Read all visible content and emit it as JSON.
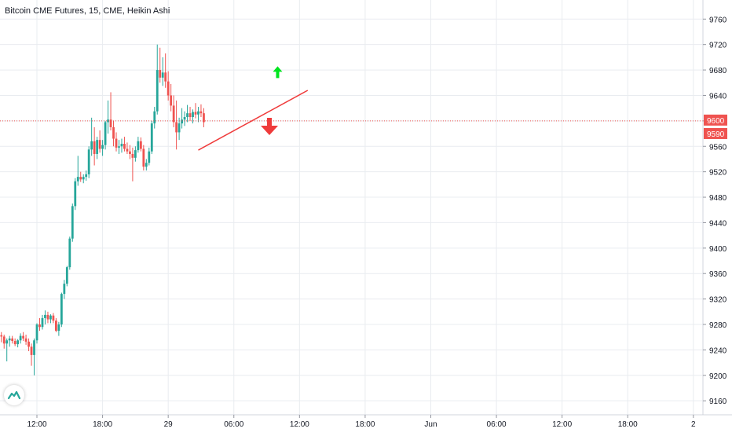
{
  "chart_title": "Bitcoin CME Futures, 15, CME, Heikin Ashi",
  "colors": {
    "up": "#26a69a",
    "down": "#ef5350",
    "grid": "#e9ecf0",
    "axis_text": "#131722",
    "line_tag": "#ef5350",
    "arrow_up": "#00e51f",
    "arrow_down": "#ef3b3b",
    "trendline": "#ef3b3b"
  },
  "logo_icon": "tradingview-cloud-icon",
  "chart_data": {
    "type": "candlestick",
    "y_ticks": [
      9160,
      9200,
      9240,
      9280,
      9320,
      9360,
      9400,
      9440,
      9480,
      9520,
      9560,
      9600,
      9640,
      9680,
      9720,
      9760
    ],
    "y_tick_labels": [
      "9160",
      "9200",
      "9240",
      "9280",
      "9320",
      "9360",
      "9400",
      "9440",
      "9480",
      "9520",
      "9560",
      "9600",
      "9640",
      "9680",
      "9720",
      "9760"
    ],
    "ylim": [
      9138,
      9790
    ],
    "x_ticks": [
      "12:00",
      "18:00",
      "29",
      "06:00",
      "12:00",
      "18:00",
      "Jun",
      "06:00",
      "12:00",
      "18:00",
      "2"
    ],
    "x_tick_bar_index": [
      13,
      37,
      61,
      85,
      109,
      133,
      157,
      181,
      205,
      229,
      253
    ],
    "total_bar_slots": 257,
    "price_tags": [
      {
        "label": "9600",
        "value": 9600,
        "style": "filled"
      },
      {
        "label": "9590",
        "value": 9590,
        "style": "filled"
      }
    ],
    "price_line": 9600,
    "trendline": {
      "from": {
        "bar": 72,
        "price": 9554
      },
      "to": {
        "bar": 112,
        "price": 9648
      }
    },
    "annotations": [
      {
        "type": "arrow-up",
        "bar": 101,
        "price": 9676
      },
      {
        "type": "arrow-down",
        "bar": 98,
        "price": 9590
      }
    ],
    "candles": [
      {
        "o": 9263,
        "h": 9268,
        "l": 9252,
        "c": 9261
      },
      {
        "o": 9261,
        "h": 9264,
        "l": 9242,
        "c": 9250
      },
      {
        "o": 9250,
        "h": 9258,
        "l": 9222,
        "c": 9255
      },
      {
        "o": 9255,
        "h": 9262,
        "l": 9245,
        "c": 9258
      },
      {
        "o": 9258,
        "h": 9262,
        "l": 9250,
        "c": 9254
      },
      {
        "o": 9254,
        "h": 9258,
        "l": 9246,
        "c": 9249
      },
      {
        "o": 9249,
        "h": 9257,
        "l": 9244,
        "c": 9255
      },
      {
        "o": 9255,
        "h": 9266,
        "l": 9250,
        "c": 9262
      },
      {
        "o": 9262,
        "h": 9268,
        "l": 9254,
        "c": 9258
      },
      {
        "o": 9258,
        "h": 9264,
        "l": 9248,
        "c": 9253
      },
      {
        "o": 9253,
        "h": 9258,
        "l": 9238,
        "c": 9245
      },
      {
        "o": 9245,
        "h": 9250,
        "l": 9215,
        "c": 9232
      },
      {
        "o": 9232,
        "h": 9258,
        "l": 9200,
        "c": 9255
      },
      {
        "o": 9255,
        "h": 9282,
        "l": 9250,
        "c": 9280
      },
      {
        "o": 9280,
        "h": 9290,
        "l": 9270,
        "c": 9276
      },
      {
        "o": 9276,
        "h": 9295,
        "l": 9272,
        "c": 9290
      },
      {
        "o": 9290,
        "h": 9302,
        "l": 9280,
        "c": 9295
      },
      {
        "o": 9295,
        "h": 9300,
        "l": 9282,
        "c": 9288
      },
      {
        "o": 9288,
        "h": 9296,
        "l": 9282,
        "c": 9294
      },
      {
        "o": 9294,
        "h": 9298,
        "l": 9282,
        "c": 9286
      },
      {
        "o": 9286,
        "h": 9290,
        "l": 9268,
        "c": 9270
      },
      {
        "o": 9270,
        "h": 9284,
        "l": 9262,
        "c": 9280
      },
      {
        "o": 9280,
        "h": 9330,
        "l": 9276,
        "c": 9328
      },
      {
        "o": 9328,
        "h": 9350,
        "l": 9320,
        "c": 9344
      },
      {
        "o": 9344,
        "h": 9372,
        "l": 9340,
        "c": 9370
      },
      {
        "o": 9370,
        "h": 9418,
        "l": 9366,
        "c": 9415
      },
      {
        "o": 9415,
        "h": 9470,
        "l": 9410,
        "c": 9466
      },
      {
        "o": 9466,
        "h": 9510,
        "l": 9460,
        "c": 9505
      },
      {
        "o": 9505,
        "h": 9545,
        "l": 9498,
        "c": 9512
      },
      {
        "o": 9512,
        "h": 9520,
        "l": 9504,
        "c": 9508
      },
      {
        "o": 9508,
        "h": 9516,
        "l": 9502,
        "c": 9512
      },
      {
        "o": 9512,
        "h": 9522,
        "l": 9506,
        "c": 9516
      },
      {
        "o": 9516,
        "h": 9560,
        "l": 9510,
        "c": 9555
      },
      {
        "o": 9555,
        "h": 9605,
        "l": 9545,
        "c": 9568
      },
      {
        "o": 9568,
        "h": 9590,
        "l": 9530,
        "c": 9548
      },
      {
        "o": 9548,
        "h": 9575,
        "l": 9540,
        "c": 9570
      },
      {
        "o": 9570,
        "h": 9585,
        "l": 9550,
        "c": 9556
      },
      {
        "o": 9556,
        "h": 9570,
        "l": 9545,
        "c": 9562
      },
      {
        "o": 9562,
        "h": 9600,
        "l": 9555,
        "c": 9598
      },
      {
        "o": 9598,
        "h": 9632,
        "l": 9580,
        "c": 9602
      },
      {
        "o": 9602,
        "h": 9645,
        "l": 9585,
        "c": 9590
      },
      {
        "o": 9590,
        "h": 9600,
        "l": 9560,
        "c": 9572
      },
      {
        "o": 9572,
        "h": 9582,
        "l": 9552,
        "c": 9558
      },
      {
        "o": 9558,
        "h": 9570,
        "l": 9548,
        "c": 9560
      },
      {
        "o": 9560,
        "h": 9572,
        "l": 9550,
        "c": 9564
      },
      {
        "o": 9564,
        "h": 9575,
        "l": 9552,
        "c": 9556
      },
      {
        "o": 9556,
        "h": 9566,
        "l": 9548,
        "c": 9552
      },
      {
        "o": 9552,
        "h": 9562,
        "l": 9540,
        "c": 9548
      },
      {
        "o": 9548,
        "h": 9558,
        "l": 9505,
        "c": 9542
      },
      {
        "o": 9542,
        "h": 9560,
        "l": 9536,
        "c": 9554
      },
      {
        "o": 9554,
        "h": 9575,
        "l": 9550,
        "c": 9568
      },
      {
        "o": 9568,
        "h": 9574,
        "l": 9552,
        "c": 9556
      },
      {
        "o": 9556,
        "h": 9562,
        "l": 9522,
        "c": 9528
      },
      {
        "o": 9528,
        "h": 9540,
        "l": 9522,
        "c": 9534
      },
      {
        "o": 9534,
        "h": 9558,
        "l": 9530,
        "c": 9552
      },
      {
        "o": 9552,
        "h": 9600,
        "l": 9548,
        "c": 9596
      },
      {
        "o": 9596,
        "h": 9622,
        "l": 9588,
        "c": 9615
      },
      {
        "o": 9615,
        "h": 9720,
        "l": 9610,
        "c": 9680
      },
      {
        "o": 9680,
        "h": 9715,
        "l": 9660,
        "c": 9668
      },
      {
        "o": 9668,
        "h": 9700,
        "l": 9655,
        "c": 9676
      },
      {
        "o": 9676,
        "h": 9706,
        "l": 9652,
        "c": 9662
      },
      {
        "o": 9662,
        "h": 9678,
        "l": 9632,
        "c": 9640
      },
      {
        "o": 9640,
        "h": 9658,
        "l": 9615,
        "c": 9624
      },
      {
        "o": 9624,
        "h": 9640,
        "l": 9590,
        "c": 9598
      },
      {
        "o": 9598,
        "h": 9632,
        "l": 9555,
        "c": 9582
      },
      {
        "o": 9582,
        "h": 9605,
        "l": 9570,
        "c": 9596
      },
      {
        "o": 9596,
        "h": 9620,
        "l": 9588,
        "c": 9602
      },
      {
        "o": 9602,
        "h": 9615,
        "l": 9592,
        "c": 9606
      },
      {
        "o": 9606,
        "h": 9625,
        "l": 9598,
        "c": 9612
      },
      {
        "o": 9612,
        "h": 9622,
        "l": 9600,
        "c": 9606
      },
      {
        "o": 9606,
        "h": 9618,
        "l": 9596,
        "c": 9614
      },
      {
        "o": 9614,
        "h": 9628,
        "l": 9604,
        "c": 9610
      },
      {
        "o": 9610,
        "h": 9622,
        "l": 9598,
        "c": 9615
      },
      {
        "o": 9615,
        "h": 9626,
        "l": 9606,
        "c": 9612
      },
      {
        "o": 9612,
        "h": 9620,
        "l": 9590,
        "c": 9598
      }
    ]
  }
}
